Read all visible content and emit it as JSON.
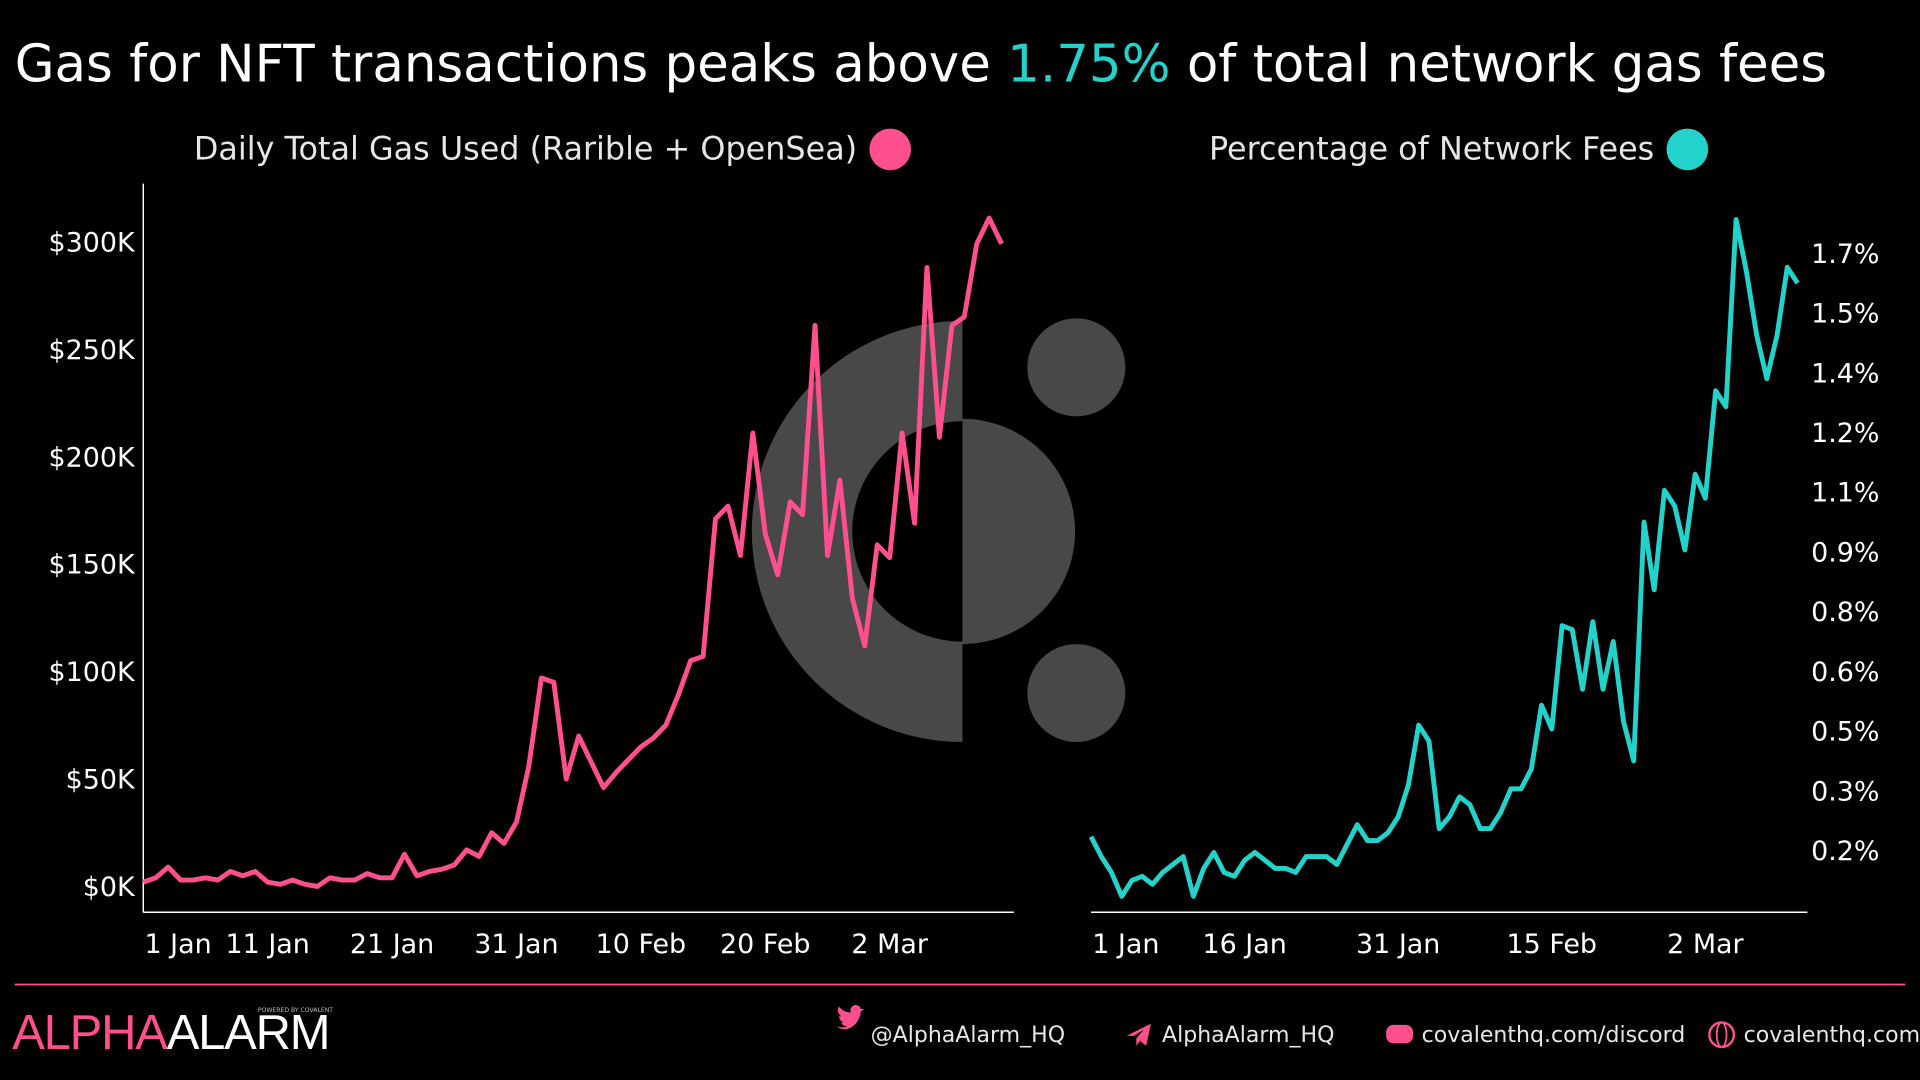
{
  "header": {
    "title_parts": [
      "Gas for NFT transactions peaks above ",
      "1.75%",
      " of total network gas fees"
    ],
    "accent": "#22d3cb"
  },
  "chart_data": [
    {
      "type": "line",
      "categories": [
        "1 Jan",
        null,
        null,
        null,
        null,
        null,
        null,
        null,
        null,
        null,
        "11 Jan",
        null,
        null,
        null,
        null,
        null,
        null,
        null,
        null,
        null,
        "21 Jan",
        null,
        null,
        null,
        null,
        null,
        null,
        null,
        null,
        null,
        "31 Jan",
        null,
        null,
        null,
        null,
        null,
        null,
        null,
        null,
        null,
        "10 Feb",
        null,
        null,
        null,
        null,
        null,
        null,
        null,
        null,
        null,
        "20 Feb",
        null,
        null,
        null,
        null,
        null,
        null,
        null,
        null,
        null,
        "2 Mar",
        null,
        null,
        null,
        null,
        null,
        null,
        null,
        null,
        null
      ],
      "series": [
        {
          "name": "Daily Total Gas Used (Rarible + OpenSea)",
          "color": "#ff4f8e",
          "values": [
            3000,
            5000,
            10000,
            4000,
            4000,
            5000,
            4000,
            8000,
            6000,
            8000,
            3000,
            2000,
            4000,
            2000,
            1000,
            5000,
            4000,
            4000,
            7000,
            5000,
            5000,
            16000,
            6000,
            8000,
            9000,
            11000,
            18000,
            15000,
            26000,
            21000,
            31000,
            57000,
            98000,
            96000,
            51000,
            71000,
            59000,
            47000,
            54000,
            60000,
            66000,
            70000,
            76000,
            90000,
            106000,
            108000,
            172000,
            178000,
            155000,
            212000,
            165000,
            146000,
            180000,
            174000,
            262000,
            155000,
            190000,
            135000,
            113000,
            160000,
            154000,
            212000,
            170000,
            289000,
            210000,
            262000,
            266000,
            300000,
            312000,
            300000
          ]
        }
      ],
      "ylim": [
        -11000,
        328000
      ],
      "yticks": [
        {
          "value": 0,
          "label": "$0K"
        },
        {
          "value": 50000,
          "label": "$50K"
        },
        {
          "value": 100000,
          "label": "$100K"
        },
        {
          "value": 150000,
          "label": "$150K"
        },
        {
          "value": 200000,
          "label": "$200K"
        },
        {
          "value": 250000,
          "label": "$250K"
        },
        {
          "value": 300000,
          "label": "$300K"
        }
      ],
      "yaxis_side": "left"
    },
    {
      "type": "line",
      "categories": [
        "1 Jan",
        null,
        null,
        null,
        null,
        null,
        null,
        null,
        null,
        null,
        null,
        null,
        null,
        null,
        null,
        "16 Jan",
        null,
        null,
        null,
        null,
        null,
        null,
        null,
        null,
        null,
        null,
        null,
        null,
        null,
        null,
        "31 Jan",
        null,
        null,
        null,
        null,
        null,
        null,
        null,
        null,
        null,
        null,
        null,
        null,
        null,
        null,
        "15 Feb",
        null,
        null,
        null,
        null,
        null,
        null,
        null,
        null,
        null,
        null,
        null,
        null,
        null,
        null,
        "2 Mar",
        null,
        null,
        null,
        null,
        null,
        null,
        null,
        null,
        null
      ],
      "series": [
        {
          "name": "Percentage of Network Fees",
          "color": "#22d3cb",
          "values": [
            0.19,
            0.14,
            0.1,
            0.04,
            0.08,
            0.09,
            0.07,
            0.1,
            0.12,
            0.14,
            0.04,
            0.11,
            0.15,
            0.1,
            0.09,
            0.13,
            0.15,
            0.13,
            0.11,
            0.11,
            0.1,
            0.14,
            0.14,
            0.14,
            0.12,
            0.17,
            0.22,
            0.18,
            0.18,
            0.2,
            0.24,
            0.32,
            0.47,
            0.43,
            0.21,
            0.24,
            0.29,
            0.27,
            0.21,
            0.21,
            0.25,
            0.31,
            0.31,
            0.36,
            0.52,
            0.46,
            0.72,
            0.71,
            0.56,
            0.73,
            0.56,
            0.68,
            0.48,
            0.38,
            0.98,
            0.81,
            1.06,
            1.02,
            0.91,
            1.1,
            1.04,
            1.31,
            1.27,
            1.74,
            1.61,
            1.45,
            1.34,
            1.45,
            1.62,
            1.58
          ]
        }
      ],
      "ylim": [
        0,
        1.83
      ],
      "yticks": [
        {
          "value": 0.15,
          "label": "0.2%"
        },
        {
          "value": 0.3,
          "label": "0.3%"
        },
        {
          "value": 0.45,
          "label": "0.5%"
        },
        {
          "value": 0.6,
          "label": "0.6%"
        },
        {
          "value": 0.75,
          "label": "0.8%"
        },
        {
          "value": 0.9,
          "label": "0.9%"
        },
        {
          "value": 1.05,
          "label": "1.1%"
        },
        {
          "value": 1.2,
          "label": "1.2%"
        },
        {
          "value": 1.35,
          "label": "1.4%"
        },
        {
          "value": 1.5,
          "label": "1.5%"
        },
        {
          "value": 1.65,
          "label": "1.7%"
        }
      ],
      "yaxis_side": "right"
    }
  ],
  "footer": {
    "brand": [
      "ALPHA",
      "ALARM"
    ],
    "powered": "POWERED BY COVALENT",
    "links": [
      "@AlphaAlarm_HQ",
      "AlphaAlarm_HQ",
      "covalenthq.com/discord",
      "covalenthq.com"
    ]
  }
}
